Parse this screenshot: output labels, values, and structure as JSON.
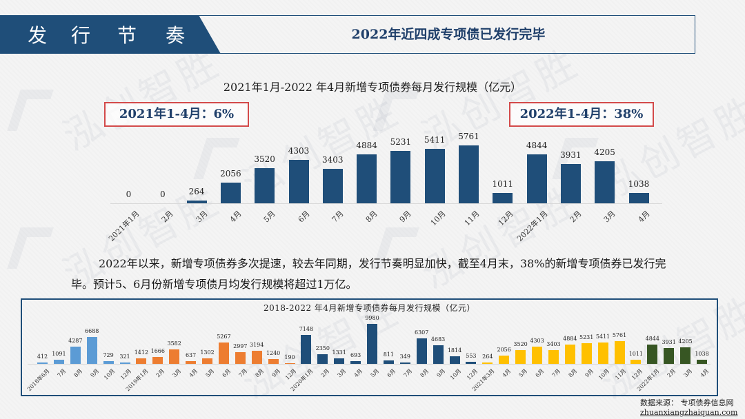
{
  "header": {
    "section_chars": [
      "发",
      "行",
      "节",
      "奏"
    ],
    "section_title": "发行节奏",
    "title": "2022年近四成专项债已发行完毕"
  },
  "watermark": {
    "text": "泓创智胜"
  },
  "callouts": {
    "left": "2021年1-4月：6%",
    "right": "2022年1-4月：38%"
  },
  "paragraph": "2022年以来，新增专项债券多次提速，较去年同期，发行节奏明显加快，截至4月末，38%的新增专项债券已发行完毕。预计5、6月份新增专项债月均发行规模将超过1万亿。",
  "source": {
    "label": "数据来源：  专项债券信息网",
    "url": "zhuanxiangzhaiquan.com"
  },
  "colors": {
    "navy": "#1f4e79",
    "callout_border": "#d34a4a",
    "y2018": "#5b9bd5",
    "y2019": "#ed7d31",
    "y2020": "#1f4e79",
    "y2021": "#ffc000",
    "y2022": "#375623"
  },
  "chart_data": [
    {
      "type": "bar",
      "title": "2021年1月-2022 年4月新增专项债券每月发行规模（亿元）",
      "xlabel": "",
      "ylabel": "亿元",
      "categories": [
        "2021年1月",
        "2月",
        "3月",
        "4月",
        "5月",
        "6月",
        "7月",
        "8月",
        "9月",
        "10月",
        "11月",
        "12月",
        "2022年1月",
        "2月",
        "3月",
        "4月"
      ],
      "values": [
        0,
        0,
        264,
        2056,
        3520,
        4303,
        3403,
        4884,
        5231,
        5411,
        5761,
        1011,
        4844,
        3931,
        4205,
        1038
      ],
      "ylim": [
        0,
        6500
      ],
      "grid": false,
      "legend": "none",
      "data_labels": true,
      "color": "#1f4e79"
    },
    {
      "type": "bar",
      "title": "2018-2022 年4月新增专项债券每月发行规模（亿元）",
      "xlabel": "",
      "ylabel": "亿元",
      "categories": [
        "2018年6月",
        "7月",
        "8月",
        "9月",
        "10月",
        "12月",
        "2019年1月",
        "2月",
        "3月",
        "4月",
        "5月",
        "6月",
        "7月",
        "8月",
        "9月",
        "12月",
        "2020年1月",
        "2月",
        "3月",
        "4月",
        "5月",
        "6月",
        "7月",
        "8月",
        "9月",
        "10月",
        "12月",
        "2021年3月",
        "4月",
        "5月",
        "6月",
        "7月",
        "8月",
        "9月",
        "10月",
        "11月",
        "12月",
        "2022年1月",
        "2月",
        "3月",
        "4月"
      ],
      "values": [
        412,
        1091,
        4287,
        6688,
        729,
        321,
        1412,
        1666,
        3582,
        637,
        1302,
        5267,
        2997,
        3194,
        1240,
        190,
        7148,
        2350,
        1331,
        693,
        9980,
        811,
        349,
        6307,
        4683,
        1814,
        553,
        264,
        2056,
        3520,
        4303,
        3403,
        4884,
        5231,
        5411,
        5761,
        1011,
        4844,
        3931,
        4205,
        1038
      ],
      "years": [
        "2018",
        "2018",
        "2018",
        "2018",
        "2018",
        "2018",
        "2019",
        "2019",
        "2019",
        "2019",
        "2019",
        "2019",
        "2019",
        "2019",
        "2019",
        "2019",
        "2020",
        "2020",
        "2020",
        "2020",
        "2020",
        "2020",
        "2020",
        "2020",
        "2020",
        "2020",
        "2020",
        "2021",
        "2021",
        "2021",
        "2021",
        "2021",
        "2021",
        "2021",
        "2021",
        "2021",
        "2021",
        "2022",
        "2022",
        "2022",
        "2022"
      ],
      "ylim": [
        0,
        10500
      ],
      "grid": false,
      "legend": "none",
      "data_labels": true
    }
  ]
}
